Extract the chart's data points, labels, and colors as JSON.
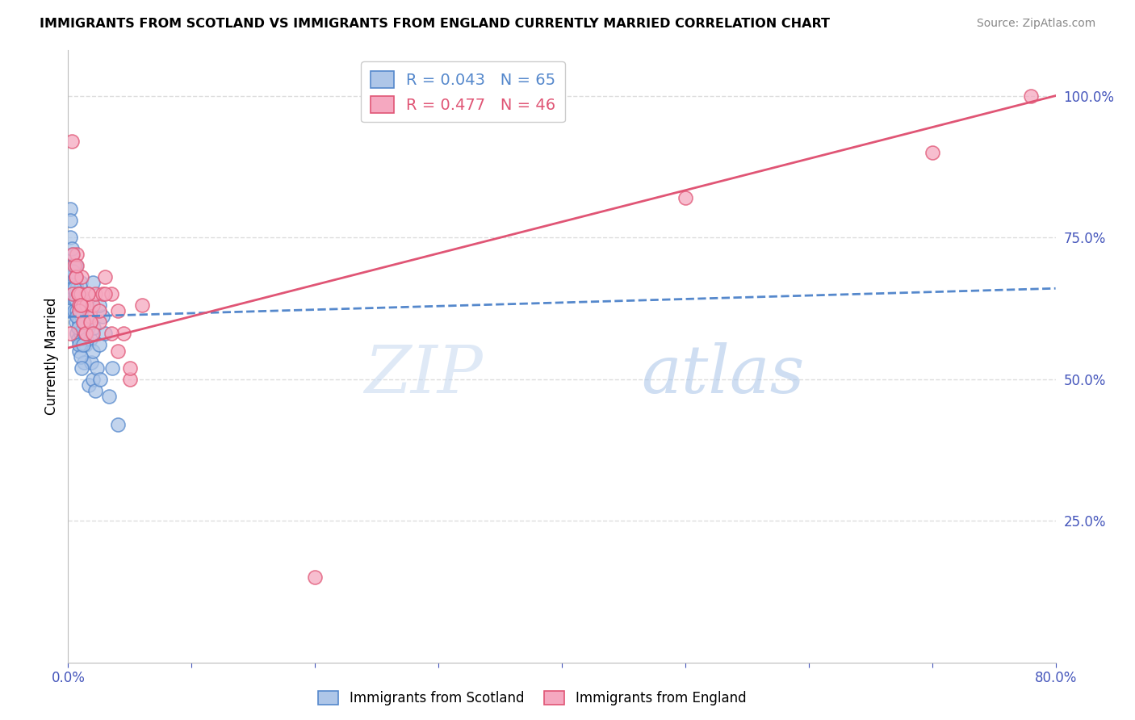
{
  "title": "IMMIGRANTS FROM SCOTLAND VS IMMIGRANTS FROM ENGLAND CURRENTLY MARRIED CORRELATION CHART",
  "source": "Source: ZipAtlas.com",
  "ylabel": "Currently Married",
  "y_labels_right": [
    "100.0%",
    "75.0%",
    "50.0%",
    "25.0%"
  ],
  "y_label_right_vals": [
    1.0,
    0.75,
    0.5,
    0.25
  ],
  "xlim": [
    0.0,
    0.8
  ],
  "ylim": [
    0.0,
    1.08
  ],
  "scotland_R": 0.043,
  "scotland_N": 65,
  "england_R": 0.477,
  "england_N": 46,
  "scotland_color": "#aec6e8",
  "england_color": "#f5a8c0",
  "scotland_line_color": "#5588cc",
  "england_line_color": "#e05575",
  "watermark_zip": "ZIP",
  "watermark_atlas": "atlas",
  "legend_scotland_label": "R = 0.043   N = 65",
  "legend_england_label": "R = 0.477   N = 46",
  "bottom_legend_scotland": "Immigrants from Scotland",
  "bottom_legend_england": "Immigrants from England",
  "scotland_x": [
    0.001,
    0.002,
    0.002,
    0.003,
    0.003,
    0.003,
    0.004,
    0.004,
    0.005,
    0.005,
    0.005,
    0.006,
    0.006,
    0.006,
    0.007,
    0.007,
    0.007,
    0.008,
    0.008,
    0.008,
    0.009,
    0.009,
    0.01,
    0.01,
    0.01,
    0.011,
    0.011,
    0.012,
    0.012,
    0.013,
    0.013,
    0.014,
    0.015,
    0.015,
    0.016,
    0.017,
    0.018,
    0.019,
    0.02,
    0.02,
    0.021,
    0.022,
    0.023,
    0.025,
    0.026,
    0.028,
    0.03,
    0.033,
    0.036,
    0.04,
    0.002,
    0.003,
    0.004,
    0.005,
    0.006,
    0.007,
    0.008,
    0.009,
    0.01,
    0.011,
    0.012,
    0.013,
    0.015,
    0.02,
    0.025
  ],
  "scotland_y": [
    0.62,
    0.8,
    0.78,
    0.72,
    0.68,
    0.65,
    0.7,
    0.66,
    0.64,
    0.68,
    0.62,
    0.6,
    0.65,
    0.7,
    0.58,
    0.62,
    0.66,
    0.57,
    0.61,
    0.65,
    0.55,
    0.6,
    0.58,
    0.63,
    0.67,
    0.56,
    0.61,
    0.59,
    0.64,
    0.58,
    0.53,
    0.56,
    0.61,
    0.57,
    0.59,
    0.49,
    0.57,
    0.53,
    0.5,
    0.55,
    0.59,
    0.48,
    0.52,
    0.56,
    0.5,
    0.61,
    0.58,
    0.47,
    0.52,
    0.42,
    0.75,
    0.73,
    0.69,
    0.66,
    0.64,
    0.61,
    0.59,
    0.56,
    0.54,
    0.52,
    0.56,
    0.6,
    0.63,
    0.67,
    0.63
  ],
  "england_x": [
    0.002,
    0.003,
    0.004,
    0.005,
    0.006,
    0.007,
    0.008,
    0.009,
    0.01,
    0.011,
    0.012,
    0.013,
    0.014,
    0.015,
    0.016,
    0.018,
    0.02,
    0.022,
    0.025,
    0.028,
    0.03,
    0.035,
    0.04,
    0.045,
    0.05,
    0.06,
    0.004,
    0.006,
    0.007,
    0.008,
    0.009,
    0.01,
    0.012,
    0.014,
    0.016,
    0.018,
    0.02,
    0.025,
    0.03,
    0.035,
    0.04,
    0.05,
    0.2,
    0.5,
    0.7,
    0.78
  ],
  "england_y": [
    0.58,
    0.92,
    0.65,
    0.7,
    0.68,
    0.72,
    0.65,
    0.63,
    0.65,
    0.68,
    0.63,
    0.6,
    0.58,
    0.63,
    0.65,
    0.61,
    0.63,
    0.65,
    0.6,
    0.65,
    0.68,
    0.65,
    0.62,
    0.58,
    0.5,
    0.63,
    0.72,
    0.68,
    0.7,
    0.65,
    0.62,
    0.63,
    0.6,
    0.58,
    0.65,
    0.6,
    0.58,
    0.62,
    0.65,
    0.58,
    0.55,
    0.52,
    0.15,
    0.82,
    0.9,
    1.0
  ],
  "scotland_line_x": [
    0.0,
    0.8
  ],
  "scotland_line_y": [
    0.61,
    0.66
  ],
  "england_line_x": [
    0.0,
    0.8
  ],
  "england_line_y": [
    0.555,
    1.0
  ],
  "grid_color": "#dddddd",
  "background_color": "#ffffff"
}
